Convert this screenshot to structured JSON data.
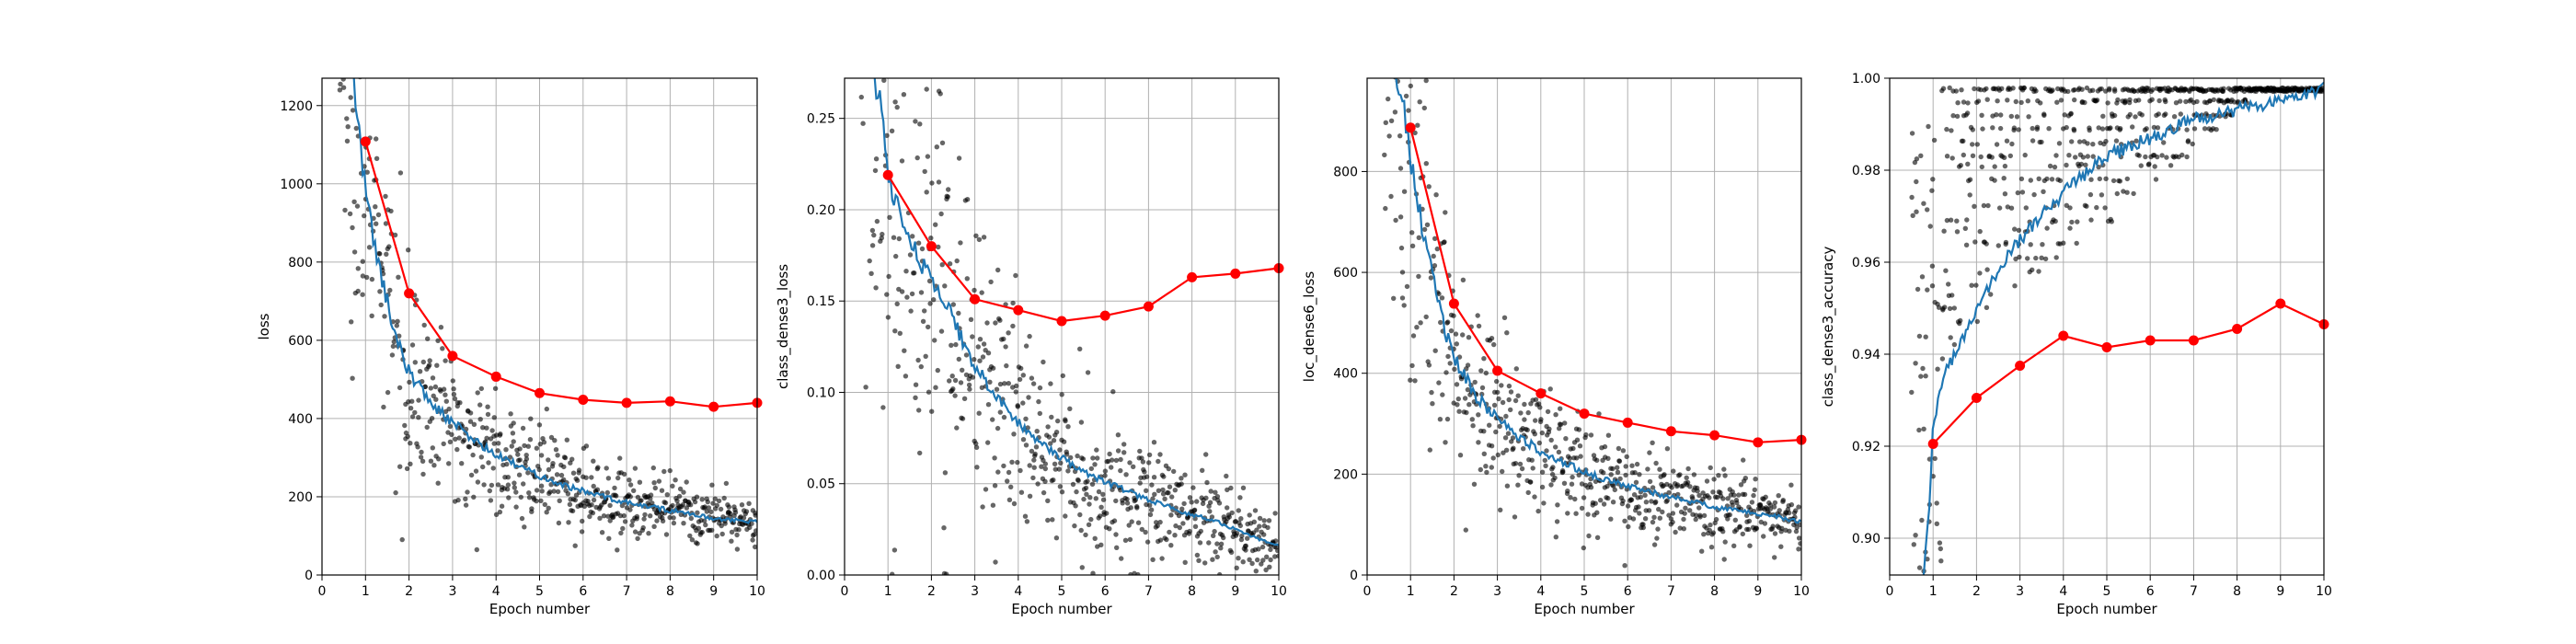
{
  "colors": {
    "train_line": "#1f77b4",
    "val_line": "#ff0000",
    "scatter": "#000000",
    "grid": "#b0b0b0",
    "axis": "#000000"
  },
  "chart_data": [
    {
      "type": "line",
      "xlabel": "Epoch number",
      "ylabel": "loss",
      "xlim": [
        0,
        10
      ],
      "ylim": [
        0,
        1270
      ],
      "xticks": [
        0,
        1,
        2,
        3,
        4,
        5,
        6,
        7,
        8,
        9,
        10
      ],
      "yticks": [
        0,
        200,
        400,
        600,
        800,
        1000,
        1200
      ],
      "tick_decimals": 0,
      "grid": true,
      "validation_markers": {
        "x": [
          1,
          2,
          3,
          4,
          5,
          6,
          7,
          8,
          9,
          10
        ],
        "y": [
          1108,
          720,
          560,
          507,
          465,
          448,
          440,
          444,
          430,
          440
        ]
      },
      "training_curve": {
        "x": [
          0.65,
          0.8,
          1,
          1.25,
          1.5,
          1.75,
          2,
          2.5,
          3,
          3.5,
          4,
          4.5,
          5,
          5.5,
          6,
          6.5,
          7,
          7.5,
          8,
          8.5,
          9,
          9.5,
          10
        ],
        "y": [
          1300,
          1200,
          980,
          820,
          700,
          590,
          520,
          440,
          390,
          345,
          305,
          280,
          255,
          232,
          215,
          200,
          185,
          175,
          165,
          155,
          145,
          140,
          135
        ]
      },
      "scatter_cloud": {
        "spread": 0.24,
        "x_start": 0.4,
        "count": 650
      }
    },
    {
      "type": "line",
      "xlabel": "Epoch number",
      "ylabel": "class_dense3_loss",
      "xlim": [
        0,
        10
      ],
      "ylim": [
        0,
        0.272
      ],
      "xticks": [
        0,
        1,
        2,
        3,
        4,
        5,
        6,
        7,
        8,
        9,
        10
      ],
      "yticks": [
        0,
        0.05,
        0.1,
        0.15,
        0.2,
        0.25
      ],
      "tick_decimals": 2,
      "grid": true,
      "validation_markers": {
        "x": [
          1,
          2,
          3,
          4,
          5,
          6,
          7,
          8,
          9,
          10
        ],
        "y": [
          0.219,
          0.18,
          0.151,
          0.145,
          0.139,
          0.142,
          0.147,
          0.163,
          0.165,
          0.168
        ]
      },
      "training_curve": {
        "x": [
          0.65,
          0.8,
          1,
          1.25,
          1.5,
          2,
          2.5,
          3,
          3.5,
          4,
          4.5,
          5,
          5.5,
          6,
          6.5,
          7,
          7.5,
          8,
          8.5,
          9,
          9.5,
          10
        ],
        "y": [
          0.28,
          0.26,
          0.22,
          0.2,
          0.185,
          0.16,
          0.14,
          0.115,
          0.098,
          0.083,
          0.072,
          0.064,
          0.057,
          0.051,
          0.046,
          0.041,
          0.037,
          0.033,
          0.03,
          0.025,
          0.02,
          0.016
        ]
      },
      "scatter_cloud": {
        "spread": 0.42,
        "x_start": 0.4,
        "count": 650
      }
    },
    {
      "type": "line",
      "xlabel": "Epoch number",
      "ylabel": "loc_dense6_loss",
      "xlim": [
        0,
        10
      ],
      "ylim": [
        0,
        985
      ],
      "xticks": [
        0,
        1,
        2,
        3,
        4,
        5,
        6,
        7,
        8,
        9,
        10
      ],
      "yticks": [
        0,
        200,
        400,
        600,
        800
      ],
      "tick_decimals": 0,
      "grid": true,
      "validation_markers": {
        "x": [
          1,
          2,
          3,
          4,
          5,
          6,
          7,
          8,
          9,
          10
        ],
        "y": [
          887,
          538,
          405,
          360,
          320,
          302,
          285,
          277,
          263,
          268
        ]
      },
      "training_curve": {
        "x": [
          0.65,
          0.8,
          1,
          1.25,
          1.5,
          1.75,
          2,
          2.5,
          3,
          3.5,
          4,
          4.5,
          5,
          5.5,
          6,
          6.5,
          7,
          7.5,
          8,
          8.5,
          9,
          9.5,
          10
        ],
        "y": [
          1000,
          940,
          830,
          700,
          590,
          500,
          430,
          355,
          310,
          275,
          245,
          225,
          205,
          190,
          175,
          165,
          155,
          145,
          135,
          128,
          122,
          115,
          105
        ]
      },
      "scatter_cloud": {
        "spread": 0.27,
        "x_start": 0.4,
        "count": 650
      }
    },
    {
      "type": "line",
      "xlabel": "Epoch number",
      "ylabel": "class_dense3_accuracy",
      "xlim": [
        0,
        10
      ],
      "ylim": [
        0.892,
        1.0
      ],
      "xticks": [
        0,
        1,
        2,
        3,
        4,
        5,
        6,
        7,
        8,
        9,
        10
      ],
      "yticks": [
        0.9,
        0.92,
        0.94,
        0.96,
        0.98,
        1.0
      ],
      "tick_decimals": 2,
      "grid": true,
      "validation_markers": {
        "x": [
          1,
          2,
          3,
          4,
          5,
          6,
          7,
          8,
          9,
          10
        ],
        "y": [
          0.9205,
          0.9305,
          0.9375,
          0.944,
          0.9415,
          0.943,
          0.943,
          0.9455,
          0.951,
          0.9465
        ]
      },
      "training_curve": {
        "x": [
          0.75,
          0.9,
          1,
          1.25,
          1.5,
          2,
          2.5,
          3,
          3.5,
          4,
          4.5,
          5,
          5.5,
          6,
          6.5,
          7,
          7.5,
          8,
          8.5,
          9,
          9.5,
          10
        ],
        "y": [
          0.89,
          0.905,
          0.925,
          0.935,
          0.94,
          0.95,
          0.958,
          0.965,
          0.97,
          0.975,
          0.979,
          0.983,
          0.985,
          0.987,
          0.989,
          0.991,
          0.992,
          0.993,
          0.994,
          0.995,
          0.996,
          0.998
        ]
      },
      "scatter_levels": [
        0.9975,
        0.995,
        0.992,
        0.989,
        0.986,
        0.983,
        0.981,
        0.978,
        0.975,
        0.972,
        0.969,
        0.967,
        0.964,
        0.961,
        0.958,
        0.955,
        0.953,
        0.95,
        0.947,
        0.944,
        0.942,
        0.939,
        0.936,
        0.933
      ],
      "scatter_cloud": {
        "x_start": 0.5,
        "count": 700
      }
    }
  ]
}
